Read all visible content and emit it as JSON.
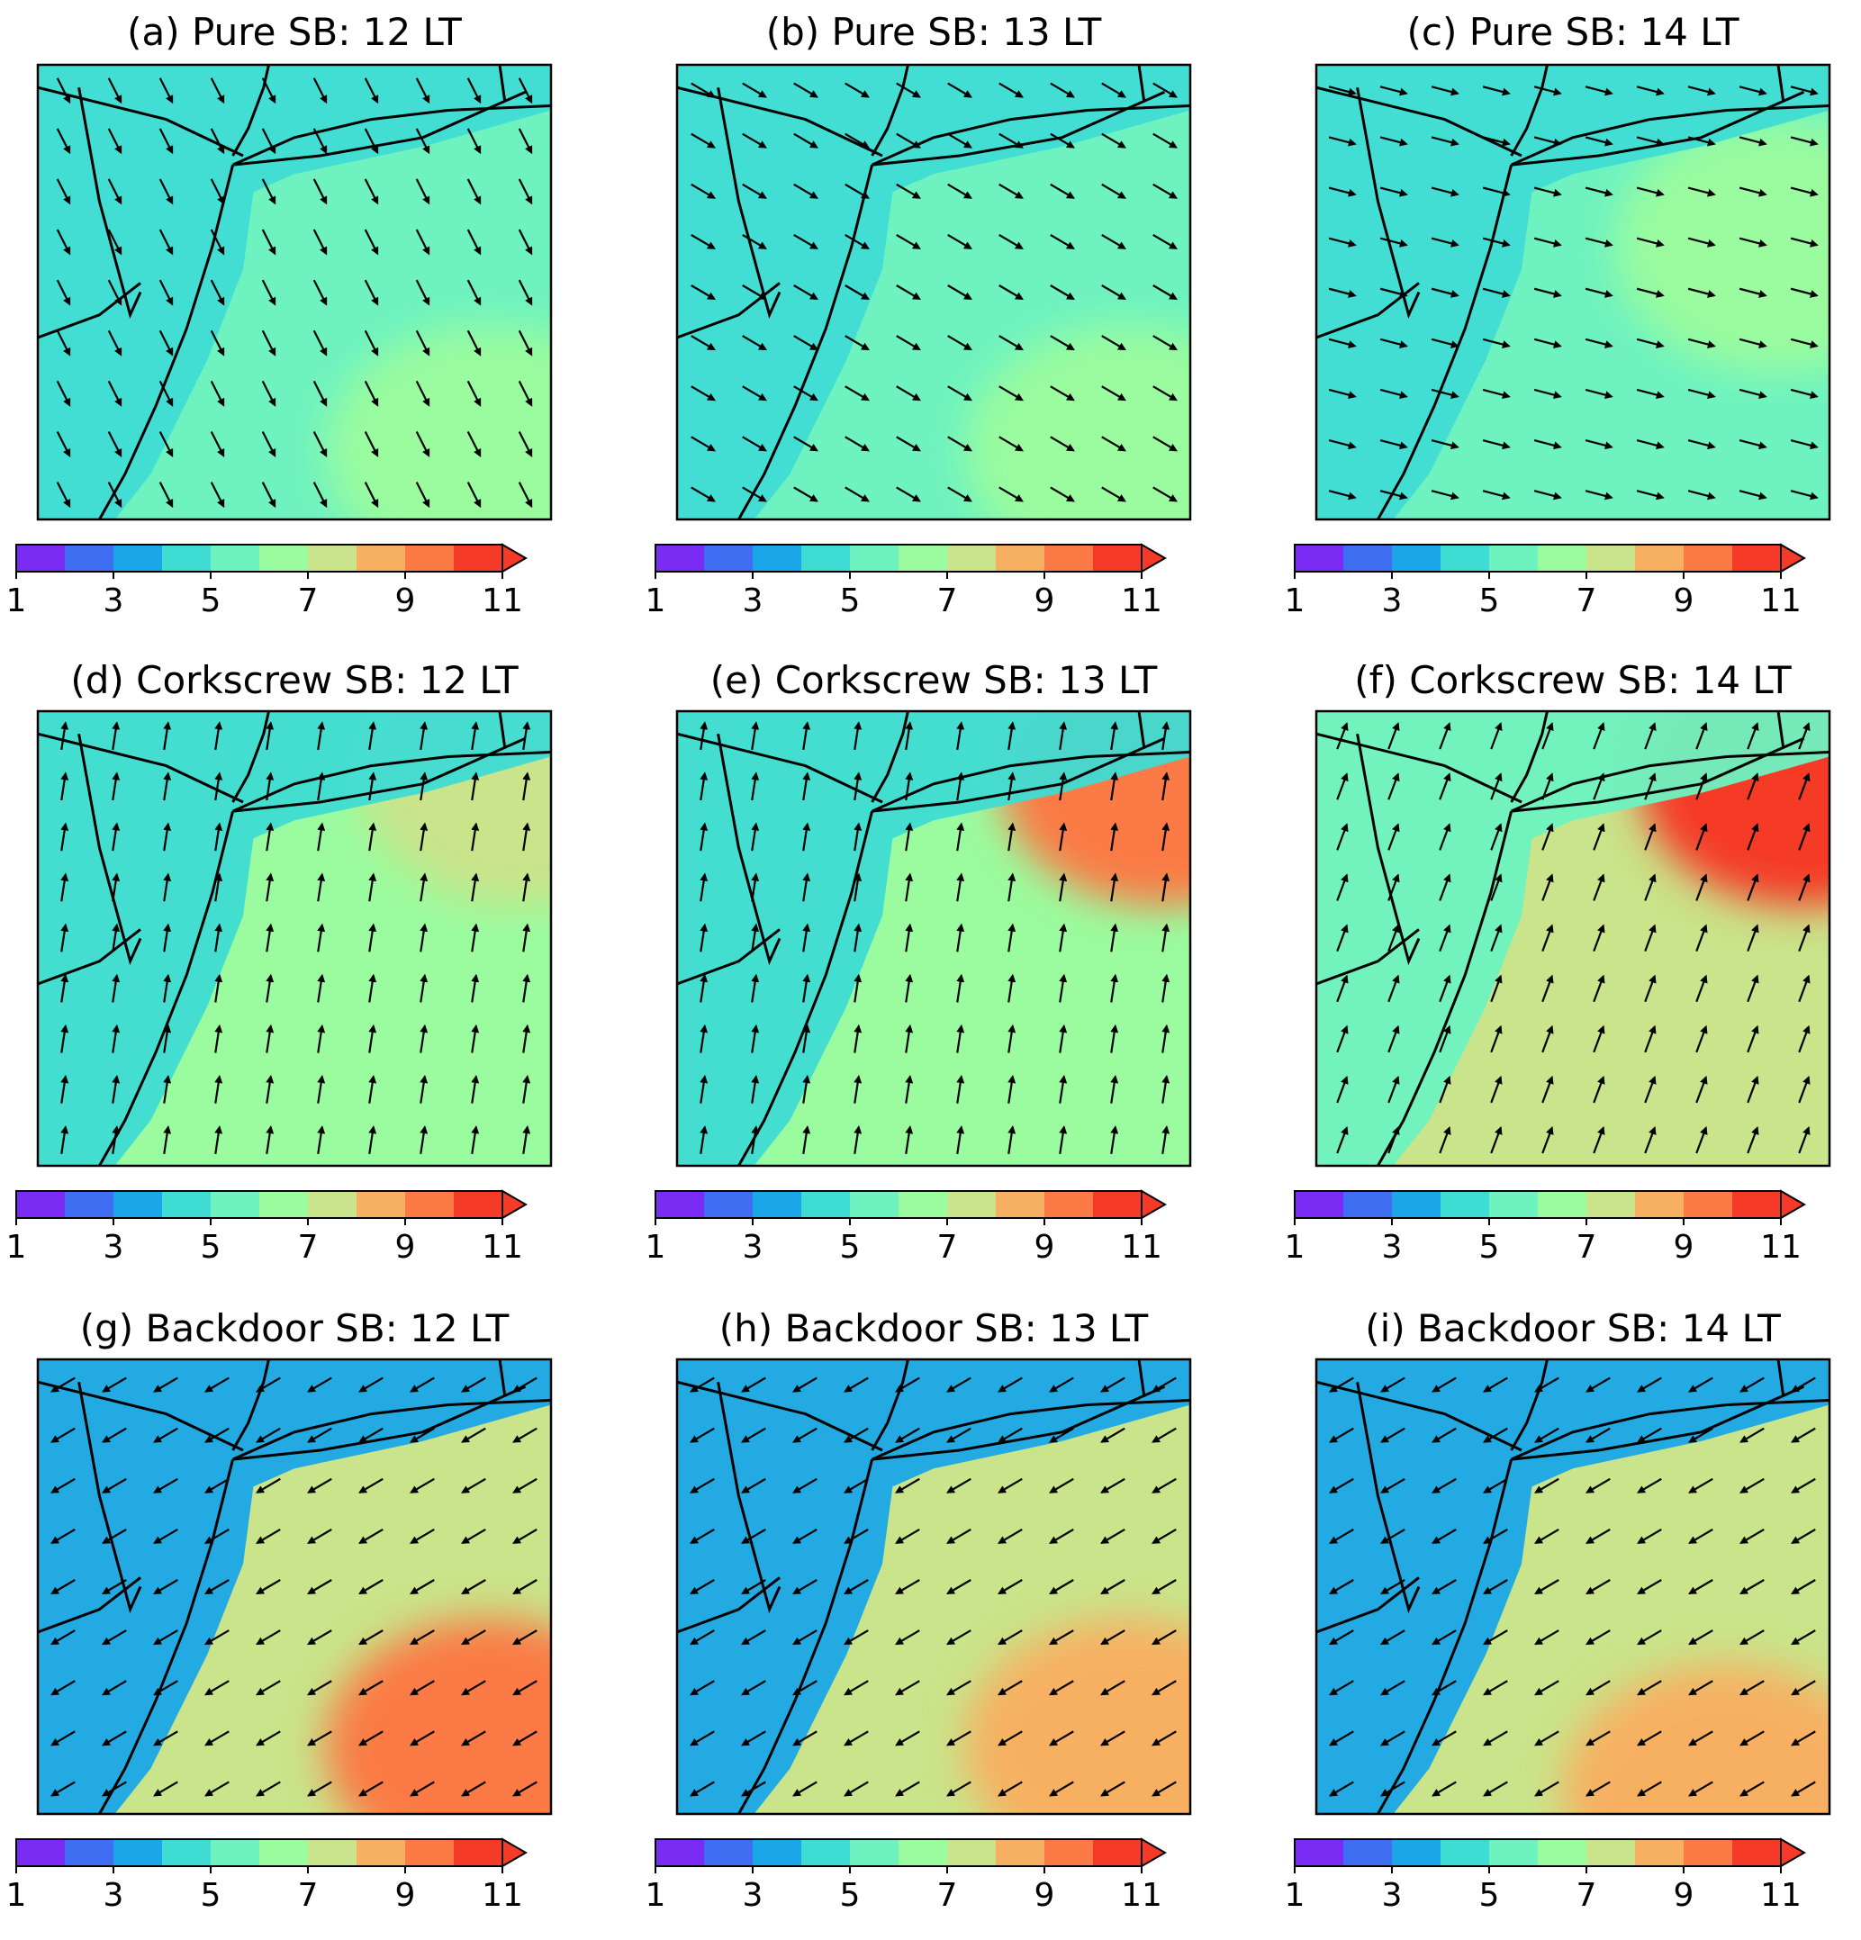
{
  "figure": {
    "colorbar": {
      "min": 1,
      "max": 11,
      "extend": "max",
      "ticks": [
        "1",
        "3",
        "5",
        "7",
        "9",
        "11"
      ],
      "colors": [
        "#7a2cf5",
        "#3f6ef2",
        "#1aa6e8",
        "#3fdcd4",
        "#6ef2c0",
        "#9afc9f",
        "#c9e48a",
        "#f7b062",
        "#fb7a45",
        "#f53a28"
      ]
    },
    "base_field_colors": {
      "land": "#3fdcd4",
      "ocean": "#9afc9f"
    }
  },
  "chart_data": [
    {
      "type": "heatmap",
      "id": "a",
      "title": "(a) Pure SB: 12 LT",
      "wind_pattern": "northwesterly",
      "field": {
        "land_level": 4.6,
        "ocean_level": 5.4,
        "hotspot_level": 6.2,
        "hotspot": "southeast"
      }
    },
    {
      "type": "heatmap",
      "id": "b",
      "title": "(b) Pure SB: 13 LT",
      "wind_pattern": "westerly-northwesterly",
      "field": {
        "land_level": 4.6,
        "ocean_level": 5.6,
        "hotspot_level": 6.2,
        "hotspot": "southeast"
      }
    },
    {
      "type": "heatmap",
      "id": "c",
      "title": "(c) Pure SB: 14 LT",
      "wind_pattern": "westerly",
      "field": {
        "land_level": 4.7,
        "ocean_level": 5.8,
        "hotspot_level": 6.2,
        "hotspot": "east"
      }
    },
    {
      "type": "heatmap",
      "id": "d",
      "title": "(d) Corkscrew SB: 12 LT",
      "wind_pattern": "southerly",
      "field": {
        "land_level": 4.6,
        "ocean_level": 6.0,
        "hotspot_level": 7.5,
        "hotspot": "northeast"
      }
    },
    {
      "type": "heatmap",
      "id": "e",
      "title": "(e) Corkscrew SB: 13 LT",
      "wind_pattern": "southerly",
      "field": {
        "land_level": 4.6,
        "ocean_level": 6.5,
        "hotspot_level": 9.0,
        "hotspot": "northeast"
      }
    },
    {
      "type": "heatmap",
      "id": "f",
      "title": "(f) Corkscrew SB: 14 LT",
      "wind_pattern": "southerly-southwesterly",
      "field": {
        "land_level": 5.0,
        "ocean_level": 7.2,
        "hotspot_level": 10.0,
        "hotspot": "northeast"
      }
    },
    {
      "type": "heatmap",
      "id": "g",
      "title": "(g) Backdoor SB: 12 LT",
      "wind_pattern": "northeasterly",
      "field": {
        "land_level": 3.2,
        "ocean_level": 7.0,
        "hotspot_level": 9.0,
        "hotspot": "southeast"
      }
    },
    {
      "type": "heatmap",
      "id": "h",
      "title": "(h) Backdoor SB: 13 LT",
      "wind_pattern": "northeasterly",
      "field": {
        "land_level": 3.0,
        "ocean_level": 7.2,
        "hotspot_level": 8.6,
        "hotspot": "southeast"
      }
    },
    {
      "type": "heatmap",
      "id": "i",
      "title": "(i) Backdoor SB: 14 LT",
      "wind_pattern": "northeasterly",
      "field": {
        "land_level": 3.2,
        "ocean_level": 7.3,
        "hotspot_level": 8.2,
        "hotspot": "south"
      }
    }
  ]
}
